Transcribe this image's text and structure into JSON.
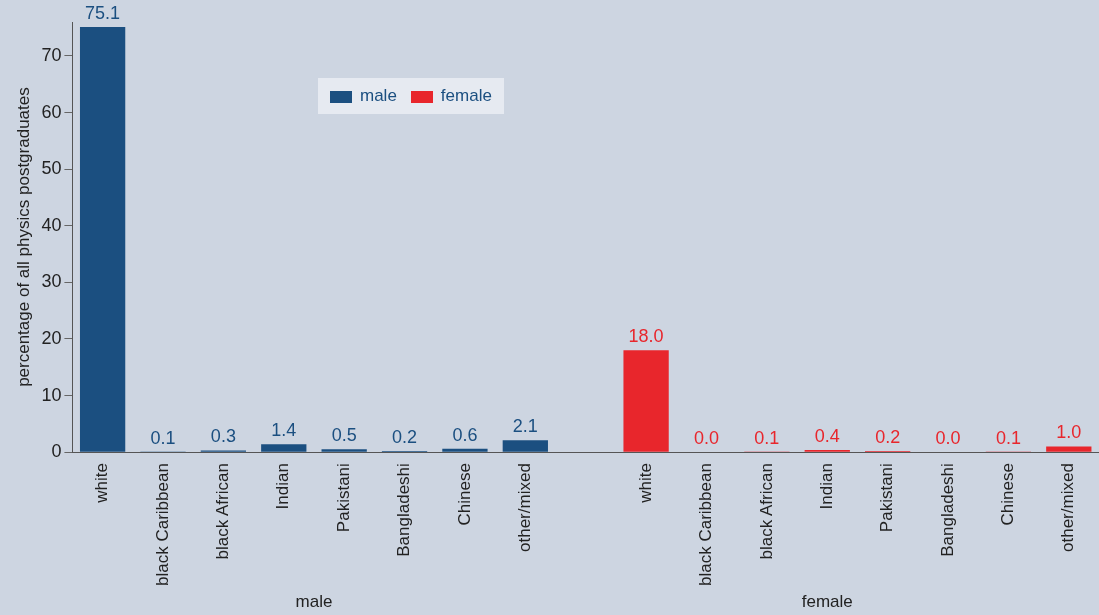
{
  "chart_data": {
    "type": "bar",
    "ylabel": "percentage of all physics postgraduates",
    "categories": [
      "white",
      "black Caribbean",
      "black African",
      "Indian",
      "Pakistani",
      "Bangladeshi",
      "Chinese",
      "other/mixed",
      null,
      "white",
      "black Caribbean",
      "black African",
      "Indian",
      "Pakistani",
      "Bangladeshi",
      "Chinese",
      "other/mixed"
    ],
    "series": [
      {
        "name": "male",
        "color": "#1b4f80",
        "values": [
          75.1,
          0.1,
          0.3,
          1.4,
          0.5,
          0.2,
          0.6,
          2.1,
          null,
          null,
          null,
          null,
          null,
          null,
          null,
          null,
          null
        ],
        "value_labels": [
          "75.1",
          "0.1",
          "0.3",
          "1.4",
          "0.5",
          "0.2",
          "0.6",
          "2.1",
          null,
          null,
          null,
          null,
          null,
          null,
          null,
          null,
          null
        ]
      },
      {
        "name": "female",
        "color": "#e8262c",
        "values": [
          null,
          null,
          null,
          null,
          null,
          null,
          null,
          null,
          null,
          18.0,
          0,
          0.1,
          0.4,
          0.2,
          0,
          0.1,
          1.0
        ],
        "value_labels": [
          null,
          null,
          null,
          null,
          null,
          null,
          null,
          null,
          null,
          "18.0",
          "0.0",
          "0.1",
          "0.4",
          "0.2",
          "0.0",
          "0.1",
          "1.0"
        ]
      }
    ],
    "annotations": [
      "male",
      "female"
    ],
    "ylim": [
      0,
      76
    ],
    "yticks": [
      0,
      10,
      20,
      30,
      40,
      50,
      60,
      70
    ],
    "grid": false,
    "legend": "top left"
  }
}
